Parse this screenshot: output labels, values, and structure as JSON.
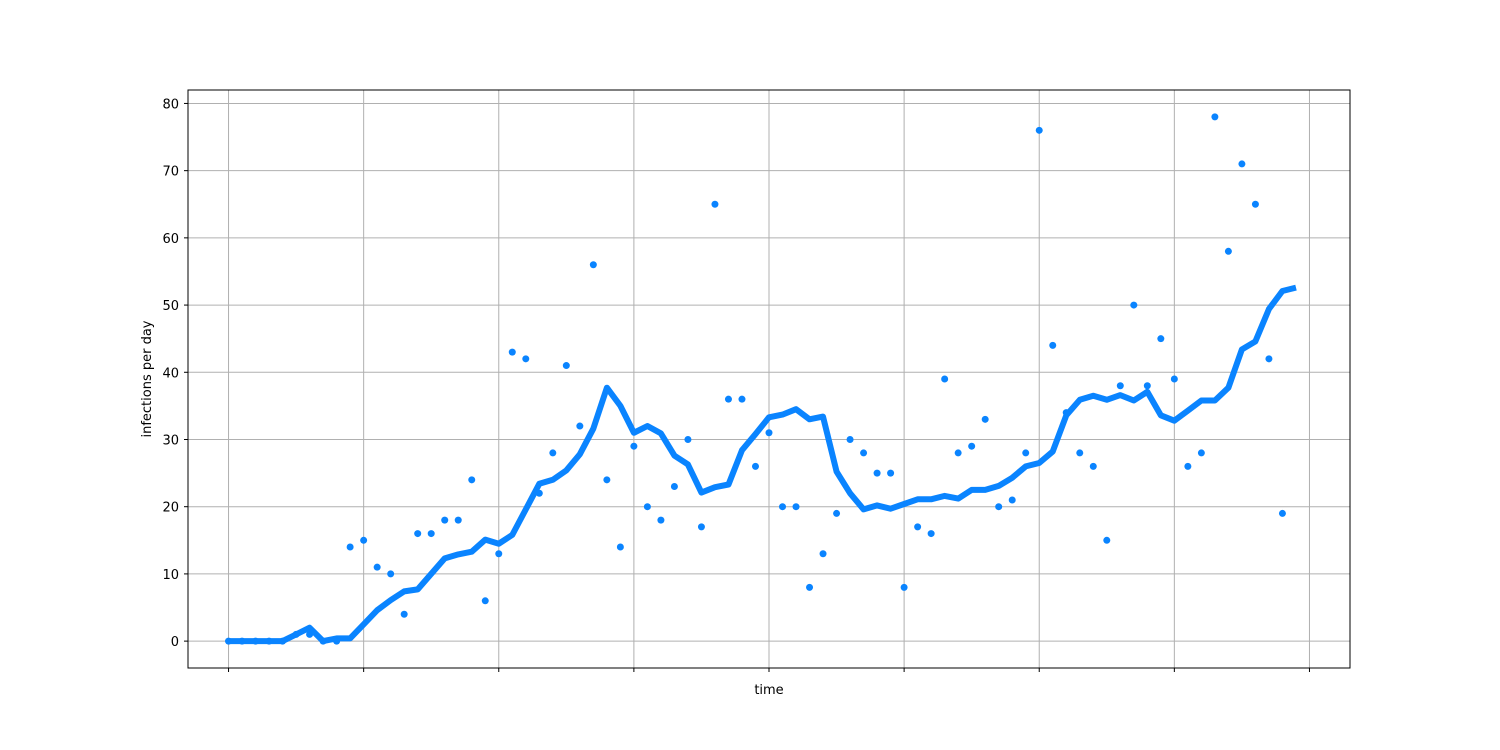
{
  "chart_data": {
    "type": "scatter",
    "xlabel": "time",
    "ylabel": "infections per day",
    "ylim": [
      -4,
      82
    ],
    "yticks": [
      0,
      10,
      20,
      30,
      40,
      50,
      60,
      70,
      80
    ],
    "xlim": [
      -3,
      83
    ],
    "xticks": [
      0,
      10,
      20,
      30,
      40,
      50,
      60,
      70,
      80
    ],
    "grid": true,
    "color": "#0a84ff",
    "series": [
      {
        "kind": "points",
        "values": [
          0,
          0,
          0,
          0,
          0,
          1,
          1,
          0,
          0,
          14,
          15,
          11,
          10,
          4,
          16,
          16,
          18,
          18,
          24,
          6,
          13,
          43,
          42,
          22,
          28,
          41,
          32,
          56,
          24,
          14,
          29,
          20,
          18,
          23,
          30,
          17,
          65,
          36,
          36,
          26,
          31,
          20,
          20,
          8,
          13,
          19,
          30,
          28,
          25,
          25,
          8,
          17,
          16,
          39,
          28,
          29,
          33,
          20,
          21,
          28,
          76,
          44,
          34,
          28,
          26,
          15,
          38,
          50,
          38,
          45,
          39,
          26,
          28,
          78,
          58,
          71,
          65,
          42,
          19
        ]
      },
      {
        "kind": "line",
        "values": [
          0,
          0,
          0,
          0,
          0,
          1,
          2,
          0,
          0.4,
          0.4,
          2.5,
          4.6,
          6.1,
          7.4,
          7.7,
          10,
          12.3,
          12.9,
          13.3,
          15.1,
          14.5,
          15.8,
          19.6,
          23.4,
          24,
          25.4,
          27.8,
          31.6,
          37.7,
          35,
          31,
          32,
          30.9,
          27.6,
          26.3,
          22.1,
          22.9,
          23.3,
          28.4,
          30.8,
          33.3,
          33.7,
          34.5,
          33,
          33.4,
          25.2,
          22,
          19.6,
          20.2,
          19.7,
          20.4,
          21.1,
          21.1,
          21.6,
          21.2,
          22.5,
          22.5,
          23.1,
          24.3,
          26,
          26.5,
          28.2,
          33.6,
          35.9,
          36.5,
          35.9,
          36.6,
          35.8,
          37.1,
          33.6,
          32.8,
          34.3,
          35.8,
          35.8,
          37.7,
          43.4,
          44.6,
          49.4,
          52.1,
          52.6
        ]
      }
    ]
  }
}
